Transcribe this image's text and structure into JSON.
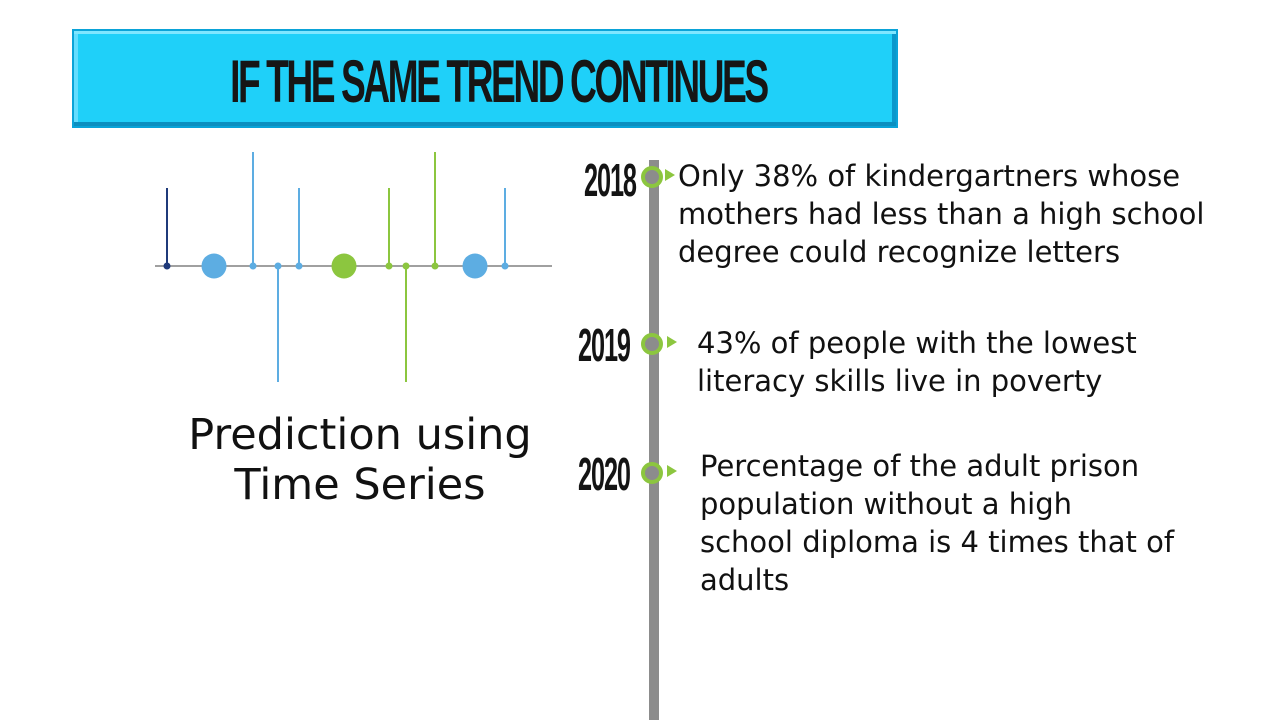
{
  "title": "IF THE SAME TREND CONTINUES",
  "caption": "Prediction using\nTime Series",
  "timeline": [
    {
      "year": "2018",
      "text": "Only 38% of kindergartners whose\nmothers had less than a high school\ndegree could recognize letters"
    },
    {
      "year": "2019",
      "text": "43% of people with the lowest\nliteracy skills live in poverty"
    },
    {
      "year": "2020",
      "text": "Percentage of the adult prison\npopulation without a high\nschool diploma is 4 times that of\nadults"
    }
  ],
  "colors": {
    "banner": "#1fd0f9",
    "green": "#8cc63f",
    "blue": "#5dade2",
    "navy": "#1f3a7a",
    "gray": "#8c8c8c"
  },
  "icon": "time-series-stem-icon"
}
